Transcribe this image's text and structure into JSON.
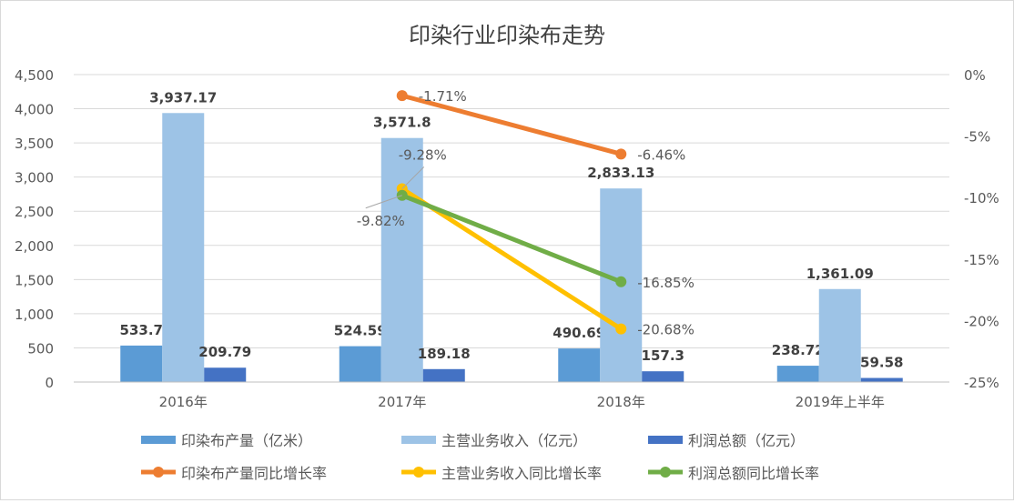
{
  "chart_data": {
    "type": "bar+line",
    "title": "印染行业印染布走势",
    "categories": [
      "2016年",
      "2017年",
      "2018年",
      "2019年上半年"
    ],
    "y_left": {
      "min": 0,
      "max": 4500,
      "step": 500,
      "ticks": [
        "0",
        "500",
        "1,000",
        "1,500",
        "2,000",
        "2,500",
        "3,000",
        "3,500",
        "4,000",
        "4,500"
      ]
    },
    "y_right": {
      "min": -25,
      "max": 0,
      "step": 5,
      "unit": "%",
      "ticks": [
        "-25%",
        "-20%",
        "-15%",
        "-10%",
        "-5%",
        "0%"
      ]
    },
    "grid": true,
    "legend_position": "bottom",
    "bar_series": [
      {
        "name": "印染布产量（亿米）",
        "color": "#5B9BD5",
        "values": [
          533.7,
          524.59,
          490.69,
          238.72
        ],
        "labels": [
          "533.7",
          "524.59",
          "490.69",
          "238.72"
        ]
      },
      {
        "name": "主营业务收入（亿元）",
        "color": "#9DC3E6",
        "values": [
          3937.17,
          3571.8,
          2833.13,
          1361.09
        ],
        "labels": [
          "3,937.17",
          "3,571.8",
          "2,833.13",
          "1,361.09"
        ]
      },
      {
        "name": "利润总额（亿元）",
        "color": "#4472C4",
        "values": [
          209.79,
          189.18,
          157.3,
          59.58
        ],
        "labels": [
          "209.79",
          "189.18",
          "157.3",
          "59.58"
        ]
      }
    ],
    "line_series": [
      {
        "name": "印染布产量同比增长率",
        "color": "#ED7D31",
        "values": [
          null,
          -1.71,
          -6.46,
          null
        ],
        "labels": [
          null,
          "-1.71%",
          "-6.46%",
          null
        ]
      },
      {
        "name": "主营业务收入同比增长率",
        "color": "#FFC000",
        "values": [
          null,
          -9.28,
          -20.68,
          null
        ],
        "labels": [
          null,
          "-9.28%",
          "-20.68%",
          null
        ]
      },
      {
        "name": "利润总额同比增长率",
        "color": "#70AD47",
        "values": [
          null,
          -9.82,
          -16.85,
          null
        ],
        "labels": [
          null,
          "-9.82%",
          "-16.85%",
          null
        ]
      }
    ]
  }
}
